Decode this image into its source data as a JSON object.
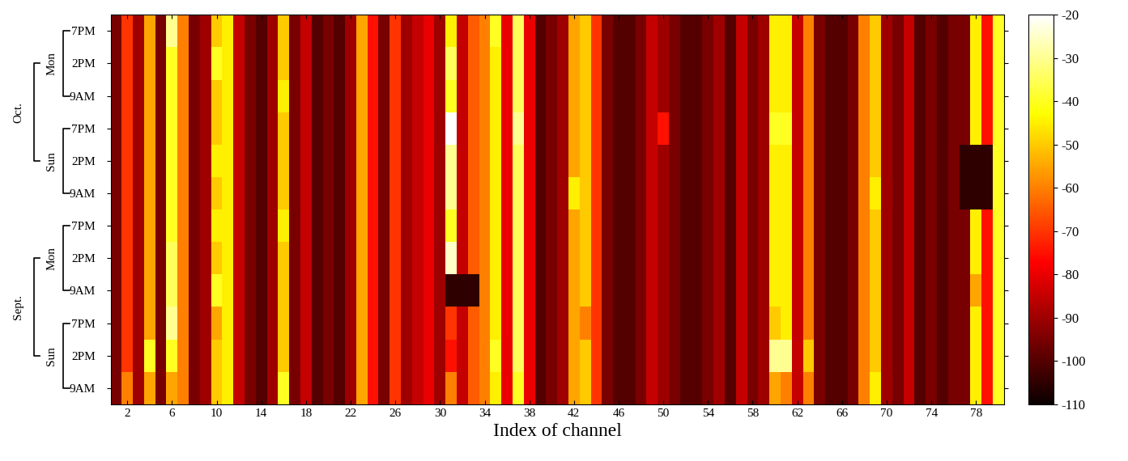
{
  "chart_data": {
    "type": "heatmap",
    "xlabel": "Index of channel",
    "x": [
      1,
      2,
      3,
      4,
      5,
      6,
      7,
      8,
      9,
      10,
      11,
      12,
      13,
      14,
      15,
      16,
      17,
      18,
      19,
      20,
      21,
      22,
      23,
      24,
      25,
      26,
      27,
      28,
      29,
      30,
      31,
      32,
      33,
      34,
      35,
      36,
      37,
      38,
      39,
      40,
      41,
      42,
      43,
      44,
      45,
      46,
      47,
      48,
      49,
      50,
      51,
      52,
      53,
      54,
      55,
      56,
      57,
      58,
      59,
      60,
      61,
      62,
      63,
      64,
      65,
      66,
      67,
      68,
      69,
      70,
      71,
      72,
      73,
      74,
      75,
      76,
      77,
      78,
      79,
      80
    ],
    "xlim": [
      0.5,
      80.5
    ],
    "xticks": [
      2,
      6,
      10,
      14,
      18,
      22,
      26,
      30,
      34,
      38,
      42,
      46,
      50,
      54,
      58,
      62,
      66,
      70,
      74,
      78
    ],
    "y_groups": [
      {
        "month": "Sept.",
        "days": [
          {
            "day": "Sun",
            "times": [
              "9AM",
              "2PM",
              "7PM"
            ]
          },
          {
            "day": "Mon",
            "times": [
              "9AM",
              "2PM",
              "7PM"
            ]
          }
        ]
      },
      {
        "month": "Oct.",
        "days": [
          {
            "day": "Sun",
            "times": [
              "9AM",
              "2PM",
              "7PM"
            ]
          },
          {
            "day": "Mon",
            "times": [
              "9AM",
              "2PM",
              "7PM"
            ]
          }
        ]
      }
    ],
    "cells": [
      [
        -95,
        -60,
        -90,
        -55,
        -95,
        -55,
        -60,
        -95,
        -90,
        -50,
        -45,
        -85,
        -95,
        -100,
        -90,
        -40,
        -95,
        -85,
        -100,
        -95,
        -100,
        -90,
        -55,
        -75,
        -95,
        -70,
        -90,
        -85,
        -80,
        -90,
        -60,
        -85,
        -65,
        -60,
        -45,
        -80,
        -40,
        -80,
        -100,
        -95,
        -90,
        -55,
        -50,
        -70,
        -95,
        -100,
        -100,
        -95,
        -85,
        -90,
        -95,
        -100,
        -100,
        -95,
        -90,
        -100,
        -85,
        -95,
        -90,
        -55,
        -60,
        -85,
        -60,
        -95,
        -100,
        -100,
        -95,
        -60,
        -45,
        -90,
        -95,
        -85,
        -100,
        -95,
        -100,
        -95,
        -95,
        -45,
        -75,
        -40
      ],
      [
        -95,
        -70,
        -90,
        -40,
        -95,
        -40,
        -60,
        -95,
        -90,
        -50,
        -45,
        -85,
        -95,
        -100,
        -90,
        -50,
        -95,
        -85,
        -100,
        -95,
        -100,
        -90,
        -55,
        -75,
        -95,
        -70,
        -90,
        -85,
        -80,
        -90,
        -75,
        -85,
        -65,
        -60,
        -40,
        -80,
        -35,
        -80,
        -100,
        -95,
        -90,
        -55,
        -50,
        -70,
        -95,
        -100,
        -100,
        -95,
        -85,
        -90,
        -95,
        -100,
        -100,
        -95,
        -90,
        -100,
        -85,
        -95,
        -90,
        -30,
        -30,
        -85,
        -50,
        -95,
        -100,
        -100,
        -95,
        -60,
        -50,
        -90,
        -95,
        -85,
        -100,
        -95,
        -100,
        -95,
        -95,
        -45,
        -75,
        -40
      ],
      [
        -95,
        -70,
        -90,
        -55,
        -95,
        -30,
        -60,
        -95,
        -90,
        -55,
        -45,
        -85,
        -95,
        -100,
        -90,
        -50,
        -95,
        -85,
        -100,
        -95,
        -100,
        -90,
        -55,
        -75,
        -95,
        -70,
        -90,
        -85,
        -80,
        -90,
        -70,
        -85,
        -65,
        -60,
        -45,
        -80,
        -35,
        -80,
        -100,
        -95,
        -90,
        -55,
        -60,
        -70,
        -95,
        -100,
        -100,
        -95,
        -85,
        -90,
        -95,
        -100,
        -100,
        -95,
        -90,
        -100,
        -85,
        -95,
        -90,
        -50,
        -45,
        -85,
        -60,
        -95,
        -100,
        -100,
        -95,
        -60,
        -50,
        -90,
        -95,
        -85,
        -100,
        -95,
        -100,
        -95,
        -95,
        -45,
        -75,
        -40
      ],
      [
        -95,
        -70,
        -90,
        -55,
        -95,
        -35,
        -60,
        -95,
        -90,
        -40,
        -45,
        -85,
        -95,
        -100,
        -90,
        -50,
        -95,
        -85,
        -100,
        -95,
        -100,
        -90,
        -55,
        -75,
        -95,
        -70,
        -90,
        -85,
        -80,
        -90,
        -105,
        -105,
        -105,
        -60,
        -45,
        -80,
        -35,
        -80,
        -100,
        -95,
        -90,
        -55,
        -50,
        -70,
        -95,
        -100,
        -100,
        -95,
        -85,
        -90,
        -95,
        -100,
        -100,
        -95,
        -90,
        -100,
        -85,
        -95,
        -90,
        -45,
        -45,
        -85,
        -60,
        -95,
        -100,
        -100,
        -95,
        -60,
        -50,
        -90,
        -95,
        -85,
        -100,
        -95,
        -100,
        -95,
        -95,
        -55,
        -75,
        -40
      ],
      [
        -95,
        -70,
        -90,
        -55,
        -95,
        -35,
        -60,
        -95,
        -90,
        -50,
        -45,
        -85,
        -95,
        -100,
        -90,
        -50,
        -95,
        -85,
        -100,
        -95,
        -100,
        -90,
        -55,
        -75,
        -95,
        -70,
        -90,
        -85,
        -80,
        -90,
        -25,
        -85,
        -65,
        -60,
        -45,
        -80,
        -35,
        -80,
        -100,
        -95,
        -90,
        -55,
        -50,
        -70,
        -95,
        -100,
        -100,
        -95,
        -85,
        -90,
        -95,
        -100,
        -100,
        -95,
        -90,
        -100,
        -85,
        -95,
        -90,
        -45,
        -45,
        -85,
        -60,
        -95,
        -100,
        -100,
        -95,
        -60,
        -50,
        -90,
        -95,
        -85,
        -100,
        -95,
        -100,
        -95,
        -95,
        -45,
        -75,
        -40
      ],
      [
        -95,
        -70,
        -90,
        -55,
        -95,
        -40,
        -60,
        -95,
        -90,
        -45,
        -45,
        -85,
        -95,
        -100,
        -90,
        -45,
        -95,
        -85,
        -100,
        -95,
        -100,
        -90,
        -55,
        -75,
        -95,
        -70,
        -90,
        -85,
        -80,
        -90,
        -40,
        -85,
        -65,
        -60,
        -45,
        -80,
        -35,
        -80,
        -100,
        -95,
        -90,
        -55,
        -50,
        -70,
        -95,
        -100,
        -100,
        -95,
        -85,
        -90,
        -95,
        -100,
        -100,
        -95,
        -90,
        -100,
        -85,
        -95,
        -90,
        -45,
        -45,
        -85,
        -60,
        -95,
        -100,
        -100,
        -95,
        -60,
        -50,
        -90,
        -95,
        -85,
        -100,
        -95,
        -100,
        -95,
        -95,
        -45,
        -75,
        -40
      ],
      [
        -95,
        -70,
        -90,
        -55,
        -95,
        -40,
        -60,
        -95,
        -90,
        -50,
        -45,
        -85,
        -95,
        -100,
        -90,
        -50,
        -95,
        -85,
        -100,
        -95,
        -100,
        -90,
        -55,
        -75,
        -95,
        -70,
        -90,
        -85,
        -80,
        -90,
        -30,
        -85,
        -65,
        -60,
        -45,
        -80,
        -35,
        -80,
        -100,
        -95,
        -90,
        -45,
        -50,
        -70,
        -95,
        -100,
        -100,
        -95,
        -85,
        -90,
        -95,
        -100,
        -100,
        -95,
        -90,
        -100,
        -85,
        -95,
        -90,
        -45,
        -45,
        -85,
        -60,
        -95,
        -100,
        -100,
        -95,
        -60,
        -45,
        -90,
        -95,
        -85,
        -100,
        -95,
        -100,
        -95,
        -105,
        -105,
        -105,
        -40
      ],
      [
        -95,
        -70,
        -90,
        -55,
        -95,
        -40,
        -60,
        -95,
        -90,
        -45,
        -45,
        -85,
        -95,
        -100,
        -90,
        -50,
        -95,
        -85,
        -100,
        -95,
        -100,
        -90,
        -55,
        -75,
        -95,
        -70,
        -90,
        -85,
        -80,
        -90,
        -30,
        -85,
        -65,
        -60,
        -45,
        -80,
        -35,
        -80,
        -100,
        -95,
        -90,
        -55,
        -50,
        -70,
        -95,
        -100,
        -100,
        -95,
        -85,
        -90,
        -95,
        -100,
        -100,
        -95,
        -90,
        -100,
        -85,
        -95,
        -90,
        -45,
        -45,
        -85,
        -60,
        -95,
        -100,
        -100,
        -95,
        -60,
        -50,
        -90,
        -95,
        -85,
        -100,
        -95,
        -100,
        -95,
        -105,
        -105,
        -105,
        -40
      ],
      [
        -95,
        -70,
        -90,
        -55,
        -95,
        -40,
        -60,
        -95,
        -90,
        -50,
        -45,
        -85,
        -95,
        -100,
        -90,
        -50,
        -95,
        -85,
        -100,
        -95,
        -100,
        -90,
        -55,
        -75,
        -95,
        -70,
        -90,
        -85,
        -80,
        -90,
        -20,
        -85,
        -65,
        -60,
        -45,
        -80,
        -30,
        -80,
        -100,
        -95,
        -90,
        -55,
        -50,
        -70,
        -95,
        -100,
        -100,
        -95,
        -85,
        -75,
        -95,
        -100,
        -100,
        -95,
        -90,
        -100,
        -85,
        -95,
        -90,
        -40,
        -40,
        -85,
        -60,
        -95,
        -100,
        -100,
        -95,
        -60,
        -50,
        -90,
        -95,
        -85,
        -100,
        -95,
        -100,
        -95,
        -95,
        -45,
        -75,
        -40
      ],
      [
        -95,
        -70,
        -90,
        -55,
        -95,
        -40,
        -60,
        -95,
        -90,
        -50,
        -45,
        -85,
        -95,
        -100,
        -90,
        -45,
        -95,
        -85,
        -100,
        -95,
        -100,
        -90,
        -55,
        -75,
        -95,
        -70,
        -90,
        -85,
        -80,
        -90,
        -40,
        -85,
        -65,
        -60,
        -45,
        -80,
        -35,
        -80,
        -100,
        -95,
        -90,
        -55,
        -50,
        -70,
        -95,
        -100,
        -100,
        -95,
        -85,
        -90,
        -95,
        -100,
        -100,
        -95,
        -90,
        -100,
        -85,
        -95,
        -90,
        -45,
        -45,
        -85,
        -60,
        -95,
        -100,
        -100,
        -95,
        -60,
        -50,
        -90,
        -95,
        -85,
        -100,
        -95,
        -100,
        -95,
        -95,
        -45,
        -75,
        -40
      ],
      [
        -95,
        -70,
        -90,
        -55,
        -95,
        -40,
        -60,
        -95,
        -90,
        -40,
        -45,
        -85,
        -95,
        -100,
        -90,
        -50,
        -95,
        -85,
        -100,
        -95,
        -100,
        -90,
        -55,
        -75,
        -95,
        -70,
        -90,
        -85,
        -80,
        -90,
        -35,
        -85,
        -65,
        -60,
        -45,
        -80,
        -35,
        -80,
        -100,
        -95,
        -90,
        -55,
        -50,
        -70,
        -95,
        -100,
        -100,
        -95,
        -85,
        -90,
        -95,
        -100,
        -100,
        -95,
        -90,
        -100,
        -85,
        -95,
        -90,
        -45,
        -45,
        -85,
        -60,
        -95,
        -100,
        -100,
        -95,
        -60,
        -50,
        -90,
        -95,
        -85,
        -100,
        -95,
        -100,
        -95,
        -95,
        -45,
        -75,
        -40
      ],
      [
        -95,
        -70,
        -90,
        -55,
        -95,
        -30,
        -60,
        -95,
        -90,
        -50,
        -45,
        -85,
        -95,
        -100,
        -90,
        -50,
        -95,
        -85,
        -100,
        -95,
        -100,
        -90,
        -55,
        -75,
        -95,
        -70,
        -90,
        -85,
        -80,
        -90,
        -45,
        -85,
        -65,
        -60,
        -40,
        -80,
        -35,
        -80,
        -100,
        -95,
        -90,
        -55,
        -50,
        -70,
        -95,
        -100,
        -100,
        -95,
        -85,
        -90,
        -95,
        -100,
        -100,
        -95,
        -90,
        -100,
        -85,
        -95,
        -90,
        -45,
        -45,
        -85,
        -60,
        -95,
        -100,
        -100,
        -95,
        -60,
        -50,
        -90,
        -95,
        -85,
        -100,
        -95,
        -100,
        -95,
        -95,
        -45,
        -75,
        -40
      ]
    ],
    "colorbar_range": [
      -110,
      -20
    ],
    "colorbar_ticks": [
      -110,
      -100,
      -90,
      -80,
      -70,
      -60,
      -50,
      -40,
      -30,
      -20
    ]
  }
}
